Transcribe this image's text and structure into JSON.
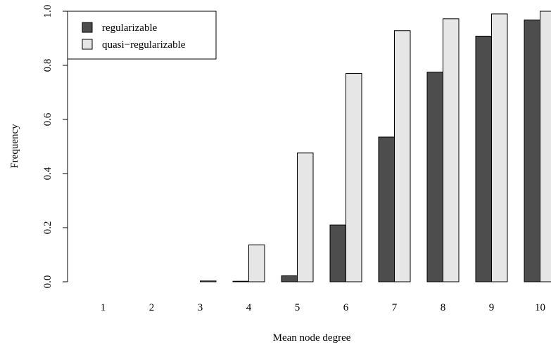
{
  "chart_data": {
    "type": "bar",
    "categories": [
      "1",
      "2",
      "3",
      "4",
      "5",
      "6",
      "7",
      "8",
      "9",
      "10"
    ],
    "series": [
      {
        "name": "regularizable",
        "color": "#4d4d4d",
        "values": [
          0.0,
          0.0,
          0.0,
          0.002,
          0.022,
          0.21,
          0.535,
          0.775,
          0.908,
          0.968
        ]
      },
      {
        "name": "quasi−regularizable",
        "color": "#e6e6e6",
        "values": [
          0.0,
          0.0,
          0.003,
          0.136,
          0.476,
          0.77,
          0.928,
          0.972,
          0.99,
          1.0
        ]
      }
    ],
    "xlabel": "Mean node degree",
    "ylabel": "Frequency",
    "ylim": [
      0,
      1
    ],
    "yticks": [
      "0.0",
      "0.2",
      "0.4",
      "0.6",
      "0.8",
      "1.0"
    ],
    "legend_position": "top-left",
    "grid": false
  }
}
